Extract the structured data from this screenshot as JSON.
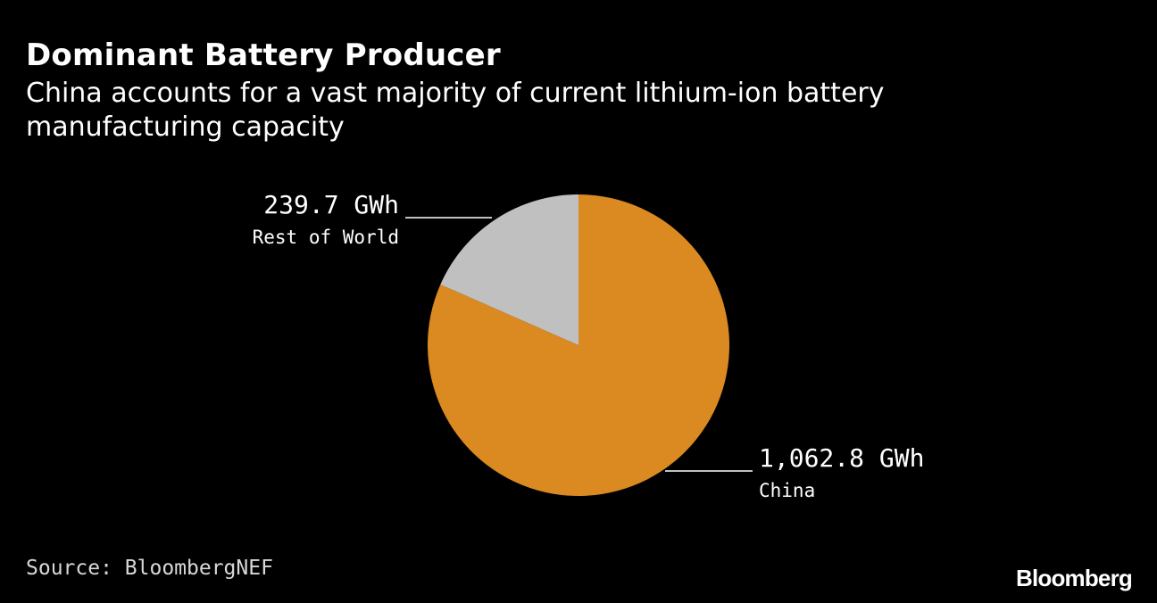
{
  "header": {
    "title": "Dominant Battery Producer",
    "subtitle": "China accounts for a vast majority of current lithium-ion battery manufacturing capacity"
  },
  "chart_data": {
    "type": "pie",
    "title": "Dominant Battery Producer",
    "subtitle": "China accounts for a vast majority of current lithium-ion battery manufacturing capacity",
    "unit": "GWh",
    "slices": [
      {
        "name": "China",
        "value": 1062.8,
        "value_label": "1,062.8 GWh",
        "color": "#db8a22"
      },
      {
        "name": "Rest of World",
        "value": 239.7,
        "value_label": "239.7 GWh",
        "color": "#c0c0c0"
      }
    ],
    "start_angle": "12 o'clock",
    "direction": "clockwise",
    "legend": "none"
  },
  "footer": {
    "source": "Source: BloombergNEF",
    "brand": "Bloomberg"
  },
  "colors": {
    "background": "#000000",
    "text": "#ffffff",
    "china": "#db8a22",
    "rest_of_world": "#c0c0c0"
  }
}
